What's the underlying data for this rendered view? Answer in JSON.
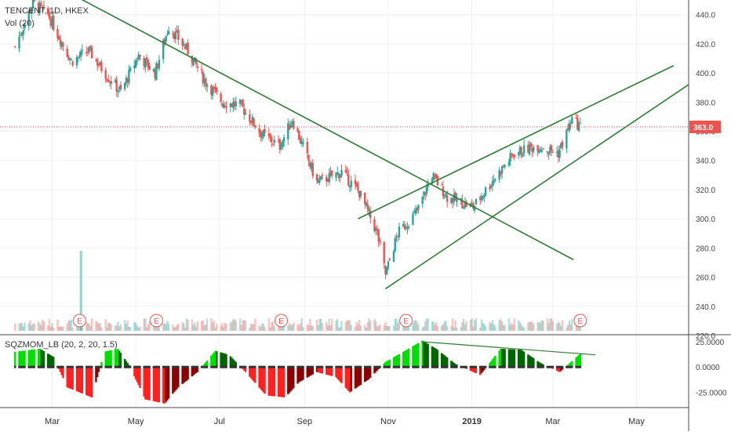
{
  "legend": {
    "symbol": "TENCENT, 1D, HKEX",
    "volume": "Vol (20)",
    "indicator": "SQZMOM_LB (20, 2, 20, 1.5)"
  },
  "last_price_label": "363.0",
  "earnings_marker_label": "E",
  "earnings_markers": [
    "2018-03-21",
    "2018-05-16",
    "2018-08-15",
    "2018-11-14",
    "2019-03-21"
  ],
  "colors": {
    "up": "#26a69a",
    "down": "#ef5350",
    "trendline": "#2e7d32",
    "last_price": "#ef5350",
    "mom_pos_strong": "#00e000",
    "mom_pos_weak": "#006400",
    "mom_neg_strong": "#ff2020",
    "mom_neg_weak": "#8b0000"
  },
  "chart_data": [
    {
      "type": "line",
      "title": "TENCENT, 1D, HKEX",
      "note": "candlestick price (approximate path)",
      "x_ticks": [
        "Mar",
        "May",
        "Jul",
        "Sep",
        "Nov",
        "2019",
        "Mar",
        "May"
      ],
      "y_ticks": [
        "440.0",
        "420.0",
        "400.0",
        "380.0",
        "360.0",
        "340.0",
        "320.0",
        "300.0",
        "280.0",
        "260.0",
        "240.0",
        "220.0"
      ],
      "ylim": [
        220,
        450
      ],
      "x": [
        "2018-02-02",
        "2018-02-15",
        "2018-02-26",
        "2018-03-15",
        "2018-03-28",
        "2018-04-10",
        "2018-04-20",
        "2018-05-03",
        "2018-05-15",
        "2018-05-25",
        "2018-06-08",
        "2018-06-20",
        "2018-07-03",
        "2018-07-16",
        "2018-08-01",
        "2018-08-14",
        "2018-08-23",
        "2018-09-10",
        "2018-09-28",
        "2018-10-11",
        "2018-10-24",
        "2018-10-30",
        "2018-11-08",
        "2018-11-22",
        "2018-12-03",
        "2018-12-14",
        "2019-01-02",
        "2019-01-15",
        "2019-02-01",
        "2019-02-18",
        "2019-03-05",
        "2019-03-15",
        "2019-03-21"
      ],
      "series": [
        {
          "values": [
            418,
            448,
            440,
            408,
            415,
            398,
            387,
            412,
            400,
            432,
            415,
            395,
            380,
            378,
            358,
            350,
            368,
            325,
            332,
            318,
            290,
            262,
            290,
            305,
            330,
            315,
            308,
            325,
            345,
            350,
            345,
            368,
            363
          ]
        }
      ],
      "trendlines": [
        {
          "from": [
            "2018-02-01",
            475
          ],
          "to": [
            "2019-03-16",
            272
          ]
        },
        {
          "from": [
            "2018-10-10",
            300
          ],
          "to": [
            "2019-05-28",
            405
          ]
        },
        {
          "from": [
            "2018-10-30",
            252
          ],
          "to": [
            "2019-06-08",
            392
          ]
        }
      ],
      "last_value": 363.0
    },
    {
      "type": "bar",
      "title": "Vol (20)",
      "note": "volume bars (relative, approximate)",
      "spike": {
        "x": "2018-03-22",
        "relative_height": 1.0
      }
    },
    {
      "type": "bar",
      "title": "SQZMOM_LB (20, 2, 20, 1.5)",
      "y_ticks": [
        "25.0000",
        "0.0000",
        "-25.0000"
      ],
      "ylim": [
        -40,
        28
      ],
      "x": [
        "2018-02-02",
        "2018-02-20",
        "2018-03-02",
        "2018-03-12",
        "2018-03-30",
        "2018-04-08",
        "2018-04-18",
        "2018-04-26",
        "2018-05-08",
        "2018-05-22",
        "2018-06-01",
        "2018-06-15",
        "2018-06-28",
        "2018-07-08",
        "2018-07-20",
        "2018-08-04",
        "2018-08-18",
        "2018-08-28",
        "2018-09-10",
        "2018-09-24",
        "2018-10-04",
        "2018-10-18",
        "2018-10-30",
        "2018-11-12",
        "2018-11-26",
        "2018-12-06",
        "2018-12-20",
        "2019-01-07",
        "2019-01-22",
        "2019-02-06",
        "2019-02-20",
        "2019-03-06",
        "2019-03-21"
      ],
      "series": [
        {
          "values": [
            15,
            18,
            10,
            -20,
            -30,
            15,
            18,
            2,
            -32,
            -36,
            -20,
            -5,
            16,
            12,
            -5,
            -28,
            -30,
            -15,
            -5,
            -10,
            -25,
            -12,
            5,
            15,
            26,
            18,
            3,
            -8,
            18,
            17,
            4,
            -5,
            13
          ]
        }
      ],
      "trendline": {
        "from": [
          "2018-11-25",
          25
        ],
        "to": [
          "2019-04-01",
          12
        ]
      }
    }
  ]
}
